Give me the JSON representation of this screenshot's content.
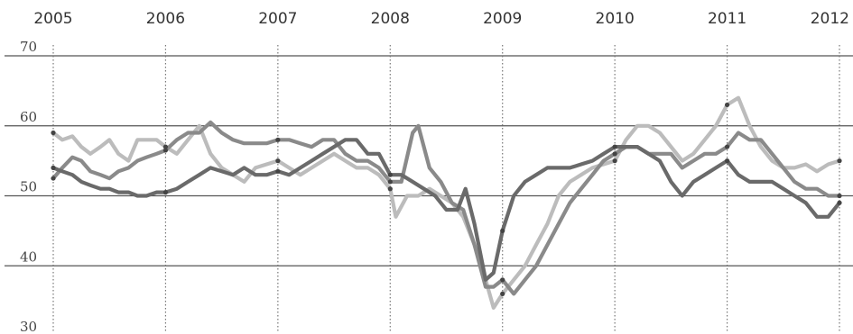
{
  "chart_data": {
    "type": "line",
    "title": "",
    "xlabel": "",
    "ylabel": "",
    "x_ticks": [
      "2005",
      "2006",
      "2007",
      "2008",
      "2009",
      "2010",
      "2011",
      "2012"
    ],
    "x_range": [
      2005,
      2012
    ],
    "y_ticks": [
      "70",
      "60",
      "50",
      "40",
      "30"
    ],
    "ylim": [
      30,
      70
    ],
    "grid": "horizontal",
    "legend": "none",
    "colors": {
      "grid": "#555555",
      "year_marker": "#777777",
      "light_series": "#bcbcbc",
      "mid_series": "#8a8a8a",
      "dark_series": "#6a6a6a"
    },
    "series": [
      {
        "color": "#bcbcbc",
        "points": [
          [
            2005.0,
            59
          ],
          [
            2005.08,
            58
          ],
          [
            2005.17,
            58.5
          ],
          [
            2005.25,
            57
          ],
          [
            2005.33,
            56
          ],
          [
            2005.42,
            57
          ],
          [
            2005.5,
            58
          ],
          [
            2005.58,
            56
          ],
          [
            2005.67,
            55
          ],
          [
            2005.75,
            58
          ],
          [
            2005.83,
            58
          ],
          [
            2005.92,
            58
          ],
          [
            2006.0,
            57
          ],
          [
            2006.1,
            56
          ],
          [
            2006.2,
            58
          ],
          [
            2006.3,
            60
          ],
          [
            2006.4,
            56
          ],
          [
            2006.5,
            54
          ],
          [
            2006.6,
            53
          ],
          [
            2006.7,
            52
          ],
          [
            2006.8,
            54
          ],
          [
            2006.9,
            54.5
          ],
          [
            2007.0,
            55
          ],
          [
            2007.1,
            54
          ],
          [
            2007.2,
            53
          ],
          [
            2007.3,
            54
          ],
          [
            2007.4,
            55
          ],
          [
            2007.5,
            56
          ],
          [
            2007.6,
            55
          ],
          [
            2007.7,
            54
          ],
          [
            2007.8,
            54
          ],
          [
            2007.9,
            53
          ],
          [
            2008.0,
            51
          ],
          [
            2008.05,
            47
          ],
          [
            2008.15,
            50
          ],
          [
            2008.25,
            50
          ],
          [
            2008.35,
            51
          ],
          [
            2008.45,
            50
          ],
          [
            2008.55,
            49
          ],
          [
            2008.65,
            47
          ],
          [
            2008.75,
            43
          ],
          [
            2008.85,
            38
          ],
          [
            2008.92,
            34
          ],
          [
            2009.0,
            36
          ],
          [
            2009.1,
            38
          ],
          [
            2009.2,
            40
          ],
          [
            2009.3,
            43
          ],
          [
            2009.4,
            46
          ],
          [
            2009.5,
            50
          ],
          [
            2009.6,
            52
          ],
          [
            2009.7,
            53
          ],
          [
            2009.8,
            54
          ],
          [
            2009.9,
            54.5
          ],
          [
            2010.0,
            55
          ],
          [
            2010.1,
            58
          ],
          [
            2010.2,
            60
          ],
          [
            2010.3,
            60
          ],
          [
            2010.4,
            59
          ],
          [
            2010.5,
            57
          ],
          [
            2010.6,
            55
          ],
          [
            2010.7,
            56
          ],
          [
            2010.8,
            58
          ],
          [
            2010.9,
            60
          ],
          [
            2011.0,
            63
          ],
          [
            2011.1,
            64
          ],
          [
            2011.2,
            60
          ],
          [
            2011.3,
            57
          ],
          [
            2011.4,
            55
          ],
          [
            2011.5,
            54
          ],
          [
            2011.6,
            54
          ],
          [
            2011.7,
            54.5
          ],
          [
            2011.8,
            53.5
          ],
          [
            2011.9,
            54.5
          ],
          [
            2012.0,
            55
          ]
        ]
      },
      {
        "color": "#8a8a8a",
        "points": [
          [
            2005.0,
            52.5
          ],
          [
            2005.08,
            54
          ],
          [
            2005.17,
            55.5
          ],
          [
            2005.25,
            55
          ],
          [
            2005.33,
            53.5
          ],
          [
            2005.42,
            53
          ],
          [
            2005.5,
            52.5
          ],
          [
            2005.58,
            53.5
          ],
          [
            2005.67,
            54
          ],
          [
            2005.75,
            55
          ],
          [
            2005.83,
            55.5
          ],
          [
            2005.92,
            56
          ],
          [
            2006.0,
            56.5
          ],
          [
            2006.1,
            58
          ],
          [
            2006.2,
            59
          ],
          [
            2006.3,
            59
          ],
          [
            2006.4,
            60.5
          ],
          [
            2006.5,
            59
          ],
          [
            2006.6,
            58
          ],
          [
            2006.7,
            57.5
          ],
          [
            2006.8,
            57.5
          ],
          [
            2006.9,
            57.5
          ],
          [
            2007.0,
            58
          ],
          [
            2007.1,
            58
          ],
          [
            2007.2,
            57.5
          ],
          [
            2007.3,
            57
          ],
          [
            2007.4,
            58
          ],
          [
            2007.5,
            58
          ],
          [
            2007.6,
            56
          ],
          [
            2007.7,
            55
          ],
          [
            2007.8,
            55
          ],
          [
            2007.9,
            54
          ],
          [
            2008.0,
            52
          ],
          [
            2008.1,
            52
          ],
          [
            2008.2,
            59
          ],
          [
            2008.25,
            60
          ],
          [
            2008.35,
            54
          ],
          [
            2008.45,
            52
          ],
          [
            2008.55,
            49
          ],
          [
            2008.65,
            48
          ],
          [
            2008.75,
            43
          ],
          [
            2008.85,
            37
          ],
          [
            2008.92,
            37
          ],
          [
            2009.0,
            38
          ],
          [
            2009.1,
            36
          ],
          [
            2009.2,
            38
          ],
          [
            2009.3,
            40
          ],
          [
            2009.4,
            43
          ],
          [
            2009.5,
            46
          ],
          [
            2009.6,
            49
          ],
          [
            2009.7,
            51
          ],
          [
            2009.8,
            53
          ],
          [
            2009.9,
            55
          ],
          [
            2010.0,
            56
          ],
          [
            2010.1,
            57
          ],
          [
            2010.2,
            57
          ],
          [
            2010.3,
            56
          ],
          [
            2010.4,
            56
          ],
          [
            2010.5,
            56
          ],
          [
            2010.6,
            54
          ],
          [
            2010.7,
            55
          ],
          [
            2010.8,
            56
          ],
          [
            2010.9,
            56
          ],
          [
            2011.0,
            57
          ],
          [
            2011.1,
            59
          ],
          [
            2011.2,
            58
          ],
          [
            2011.3,
            58
          ],
          [
            2011.4,
            56
          ],
          [
            2011.5,
            54
          ],
          [
            2011.6,
            52
          ],
          [
            2011.7,
            51
          ],
          [
            2011.8,
            51
          ],
          [
            2011.9,
            50
          ],
          [
            2012.0,
            50
          ]
        ]
      },
      {
        "color": "#6a6a6a",
        "points": [
          [
            2005.0,
            54
          ],
          [
            2005.08,
            53.5
          ],
          [
            2005.17,
            53
          ],
          [
            2005.25,
            52
          ],
          [
            2005.33,
            51.5
          ],
          [
            2005.42,
            51
          ],
          [
            2005.5,
            51
          ],
          [
            2005.58,
            50.5
          ],
          [
            2005.67,
            50.5
          ],
          [
            2005.75,
            50
          ],
          [
            2005.83,
            50
          ],
          [
            2005.92,
            50.5
          ],
          [
            2006.0,
            50.5
          ],
          [
            2006.1,
            51
          ],
          [
            2006.2,
            52
          ],
          [
            2006.3,
            53
          ],
          [
            2006.4,
            54
          ],
          [
            2006.5,
            53.5
          ],
          [
            2006.6,
            53
          ],
          [
            2006.7,
            54
          ],
          [
            2006.8,
            53
          ],
          [
            2006.9,
            53
          ],
          [
            2007.0,
            53.5
          ],
          [
            2007.1,
            53
          ],
          [
            2007.2,
            54
          ],
          [
            2007.3,
            55
          ],
          [
            2007.4,
            56
          ],
          [
            2007.5,
            57
          ],
          [
            2007.6,
            58
          ],
          [
            2007.7,
            58
          ],
          [
            2007.8,
            56
          ],
          [
            2007.9,
            56
          ],
          [
            2008.0,
            53
          ],
          [
            2008.1,
            53
          ],
          [
            2008.2,
            52
          ],
          [
            2008.3,
            51
          ],
          [
            2008.4,
            50
          ],
          [
            2008.5,
            48
          ],
          [
            2008.6,
            48
          ],
          [
            2008.67,
            51
          ],
          [
            2008.75,
            46
          ],
          [
            2008.85,
            38
          ],
          [
            2008.92,
            39
          ],
          [
            2009.0,
            45
          ],
          [
            2009.1,
            50
          ],
          [
            2009.2,
            52
          ],
          [
            2009.3,
            53
          ],
          [
            2009.4,
            54
          ],
          [
            2009.5,
            54
          ],
          [
            2009.6,
            54
          ],
          [
            2009.7,
            54.5
          ],
          [
            2009.8,
            55
          ],
          [
            2009.9,
            56
          ],
          [
            2010.0,
            57
          ],
          [
            2010.1,
            57
          ],
          [
            2010.2,
            57
          ],
          [
            2010.3,
            56
          ],
          [
            2010.4,
            55
          ],
          [
            2010.5,
            52
          ],
          [
            2010.6,
            50
          ],
          [
            2010.7,
            52
          ],
          [
            2010.8,
            53
          ],
          [
            2010.9,
            54
          ],
          [
            2011.0,
            55
          ],
          [
            2011.1,
            53
          ],
          [
            2011.2,
            52
          ],
          [
            2011.3,
            52
          ],
          [
            2011.4,
            52
          ],
          [
            2011.5,
            51
          ],
          [
            2011.6,
            50
          ],
          [
            2011.7,
            49
          ],
          [
            2011.8,
            47
          ],
          [
            2011.9,
            47
          ],
          [
            2012.0,
            49
          ]
        ]
      }
    ]
  }
}
